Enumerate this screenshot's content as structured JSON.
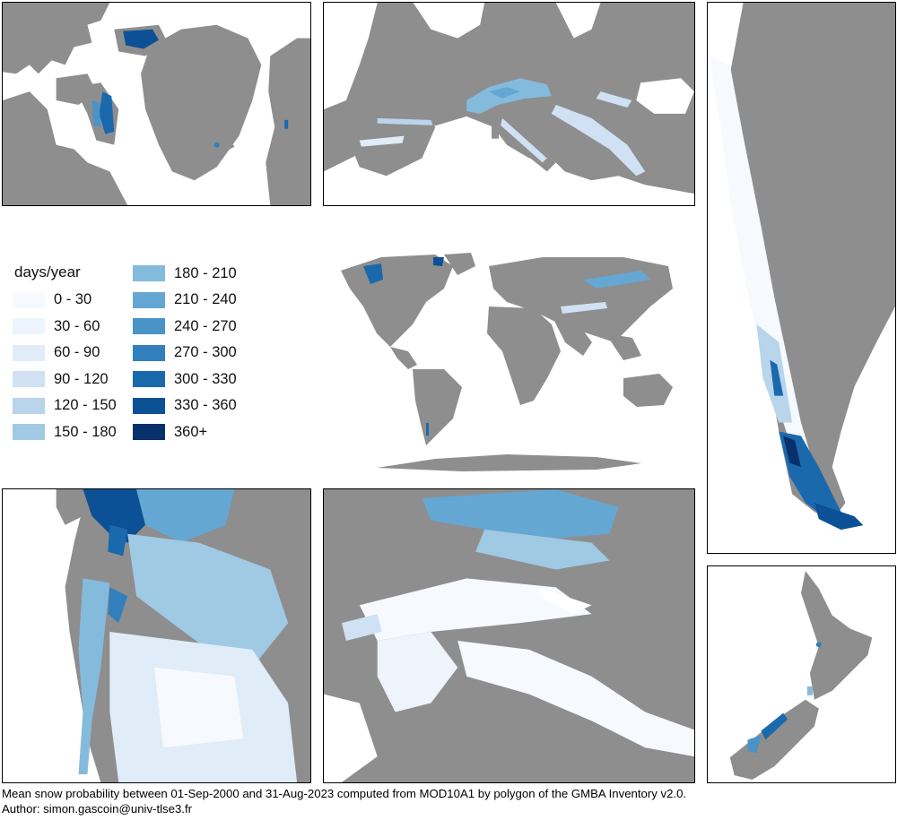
{
  "legend": {
    "title": "days/year",
    "classes": [
      {
        "label": "0 - 30",
        "color": "#f6f9fe"
      },
      {
        "label": "30 - 60",
        "color": "#edf4fc"
      },
      {
        "label": "60 - 90",
        "color": "#e0ecf8"
      },
      {
        "label": "90 - 120",
        "color": "#cfe1f3"
      },
      {
        "label": "120 - 150",
        "color": "#b8d5ec"
      },
      {
        "label": "150 - 180",
        "color": "#a0c9e4"
      },
      {
        "label": "180 - 210",
        "color": "#84bbdd"
      },
      {
        "label": "210 - 240",
        "color": "#65a7d3"
      },
      {
        "label": "240 - 270",
        "color": "#4a93c8"
      },
      {
        "label": "270 - 300",
        "color": "#3180bd"
      },
      {
        "label": "300 - 330",
        "color": "#1b69ad"
      },
      {
        "label": "330 - 360",
        "color": "#0c5196"
      },
      {
        "label": "360+",
        "color": "#08306b"
      }
    ]
  },
  "caption": {
    "line1": "Mean snow probability between 01-Sep-2000 and 31-Aug-2023 computed from MOD10A1 by polygon of the GMBA Inventory v2.0.",
    "line2": "Author: simon.gascoin@univ-tlse3.fr"
  },
  "colors": {
    "land": "#8e8e8e",
    "water": "#ffffff",
    "frame": "#000000"
  }
}
